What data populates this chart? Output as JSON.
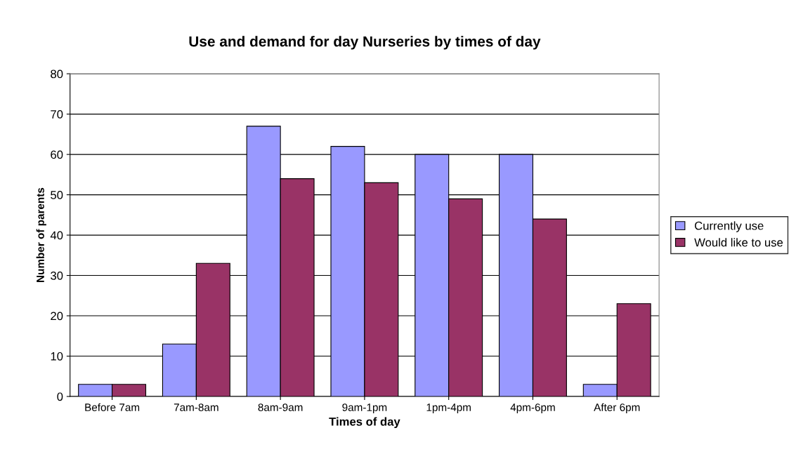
{
  "chart_data": {
    "type": "bar",
    "title": "Use and demand for day Nurseries by times of day",
    "xlabel": "Times of day",
    "ylabel": "Number of parents",
    "categories": [
      "Before 7am",
      "7am-8am",
      "8am-9am",
      "9am-1pm",
      "1pm-4pm",
      "4pm-6pm",
      "After 6pm"
    ],
    "series": [
      {
        "name": "Currently use",
        "color": "#9999ff",
        "values": [
          3,
          13,
          67,
          62,
          60,
          60,
          3
        ]
      },
      {
        "name": "Would like to use",
        "color": "#993366",
        "values": [
          3,
          33,
          54,
          53,
          49,
          44,
          23
        ]
      }
    ],
    "ylim": [
      0,
      80
    ],
    "yticks": [
      0,
      10,
      20,
      30,
      40,
      50,
      60,
      70,
      80
    ],
    "grid": "y",
    "legend": "right"
  }
}
